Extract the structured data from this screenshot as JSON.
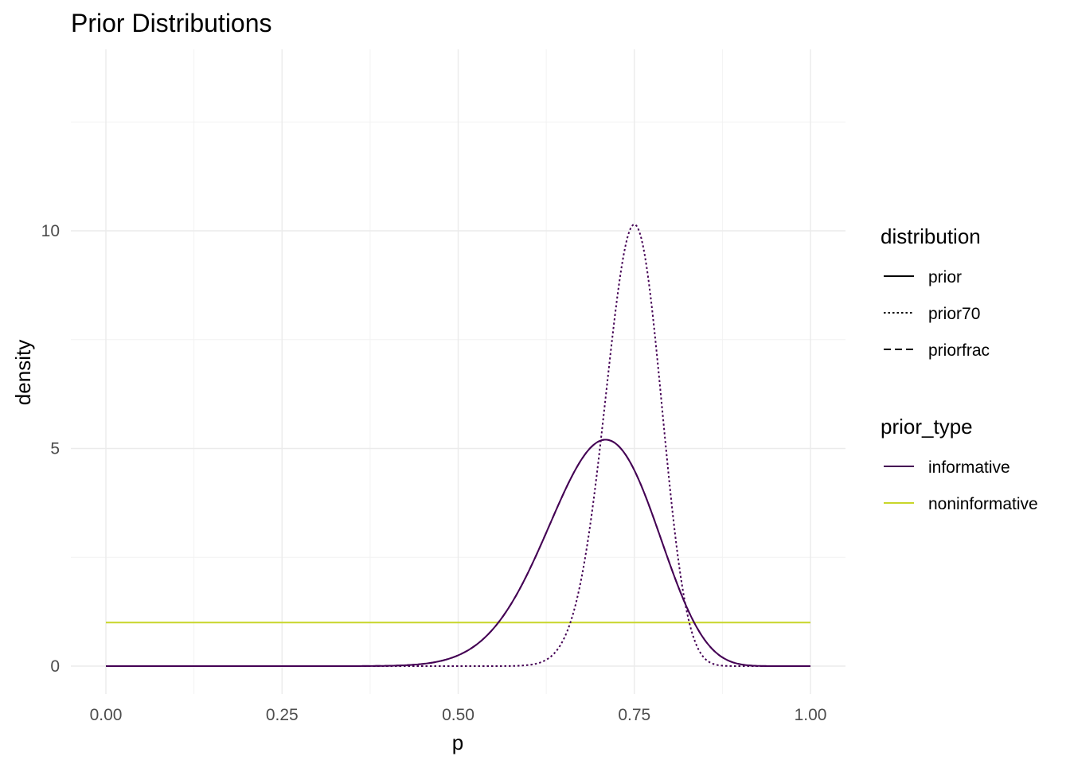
{
  "chart_data": {
    "type": "line",
    "title": "Prior Distributions",
    "xlabel": "p",
    "ylabel": "density",
    "xlim": [
      -0.05,
      1.05
    ],
    "ylim": [
      -0.6,
      14.1
    ],
    "x_ticks": [
      0,
      0.25,
      0.5,
      0.75,
      1
    ],
    "x_tick_labels": [
      "0.00",
      "0.25",
      "0.50",
      "0.75",
      "1.00"
    ],
    "y_ticks": [
      0,
      5,
      10
    ],
    "y_tick_labels": [
      "0",
      "5",
      "10"
    ],
    "grid": true,
    "legend_position": "right",
    "legends": [
      {
        "title": "distribution",
        "entries": [
          {
            "label": "prior",
            "linetype": "solid"
          },
          {
            "label": "prior70",
            "linetype": "dotted"
          },
          {
            "label": "priorfrac",
            "linetype": "dashed"
          }
        ]
      },
      {
        "title": "prior_type",
        "entries": [
          {
            "label": "informative",
            "color": "#440154"
          },
          {
            "label": "noninformative",
            "color": "#C8D62A"
          }
        ]
      }
    ],
    "series": [
      {
        "distribution": "prior",
        "prior_type": "noninformative",
        "color": "#C8D62A",
        "linetype": "solid",
        "x": [
          0,
          1
        ],
        "y": [
          1,
          1
        ]
      },
      {
        "distribution": "prior70",
        "prior_type": "informative",
        "color": "#440154",
        "linetype": "dotted",
        "curve": {
          "kind": "beta",
          "a": 91,
          "b": 31
        }
      },
      {
        "distribution": "priorfrac",
        "prior_type": "informative",
        "color": "#440154",
        "linetype": "dashed",
        "curve": {
          "kind": "beta",
          "a": 24.9,
          "b": 10.8
        }
      },
      {
        "distribution": "prior",
        "prior_type": "informative",
        "color": "#440154",
        "linetype": "solid",
        "curve": {
          "kind": "beta",
          "a": 24.9,
          "b": 10.8
        }
      }
    ]
  }
}
